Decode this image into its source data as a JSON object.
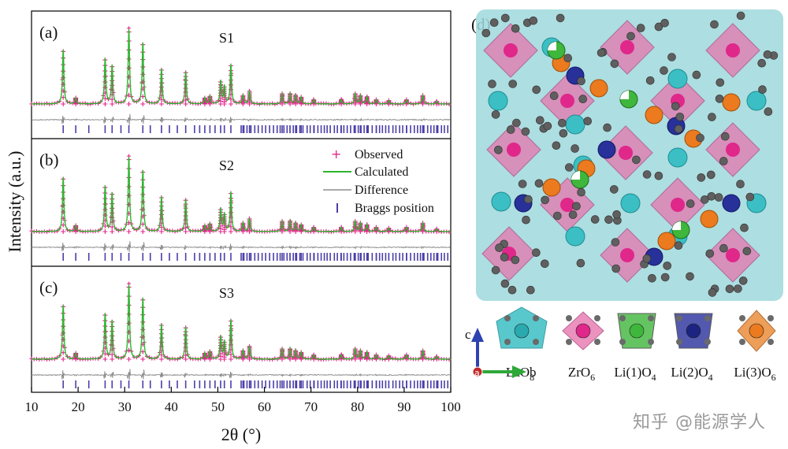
{
  "chart_data": {
    "type": "line",
    "xlabel": "2θ (°)",
    "ylabel": "Intensity (a.u.)",
    "xlim": [
      10,
      100
    ],
    "xticks": [
      "10",
      "20",
      "30",
      "40",
      "50",
      "60",
      "70",
      "80",
      "90",
      "100"
    ],
    "legend_placement": "right, middle panel",
    "legend": {
      "observed": "Observed",
      "calculated": "Calculated",
      "difference": "Difference",
      "bragg": "Braggs position"
    },
    "peaks": [
      {
        "x": 16.8,
        "h": 0.62
      },
      {
        "x": 19.5,
        "h": 0.07
      },
      {
        "x": 25.8,
        "h": 0.52
      },
      {
        "x": 27.3,
        "h": 0.44
      },
      {
        "x": 30.9,
        "h": 0.85
      },
      {
        "x": 33.9,
        "h": 0.7
      },
      {
        "x": 37.9,
        "h": 0.4
      },
      {
        "x": 43.1,
        "h": 0.37
      },
      {
        "x": 47.2,
        "h": 0.07
      },
      {
        "x": 48.3,
        "h": 0.09
      },
      {
        "x": 50.6,
        "h": 0.26
      },
      {
        "x": 51.4,
        "h": 0.2
      },
      {
        "x": 52.8,
        "h": 0.45
      },
      {
        "x": 55.4,
        "h": 0.1
      },
      {
        "x": 56.8,
        "h": 0.15
      },
      {
        "x": 63.8,
        "h": 0.12
      },
      {
        "x": 65.5,
        "h": 0.12
      },
      {
        "x": 66.7,
        "h": 0.1
      },
      {
        "x": 67.9,
        "h": 0.08
      },
      {
        "x": 70.6,
        "h": 0.05
      },
      {
        "x": 76.5,
        "h": 0.05
      },
      {
        "x": 79.5,
        "h": 0.12
      },
      {
        "x": 80.6,
        "h": 0.1
      },
      {
        "x": 82.0,
        "h": 0.08
      },
      {
        "x": 84.0,
        "h": 0.05
      },
      {
        "x": 86.7,
        "h": 0.04
      },
      {
        "x": 90.5,
        "h": 0.05
      },
      {
        "x": 94.0,
        "h": 0.1
      },
      {
        "x": 97.0,
        "h": 0.03
      }
    ],
    "series": [
      {
        "panel": "(a)",
        "sample": "S1"
      },
      {
        "panel": "(b)",
        "sample": "S2"
      },
      {
        "panel": "(c)",
        "sample": "S3"
      }
    ]
  },
  "structure": {
    "panel": "(d)",
    "axes": {
      "c": "c",
      "b": "b",
      "a": "a"
    },
    "polyhedra": [
      {
        "label": "LaO",
        "sub": "8",
        "color": "#3bbfc4"
      },
      {
        "label": "ZrO",
        "sub": "6",
        "color": "#e87fb4"
      },
      {
        "label": "Li(1)O",
        "sub": "4",
        "color": "#3fb63c"
      },
      {
        "label": "Li(2)O",
        "sub": "4",
        "color": "#28309a"
      },
      {
        "label": "Li(3)O",
        "sub": "6",
        "color": "#e9862f"
      }
    ]
  },
  "watermark": "知乎 @能源学人"
}
